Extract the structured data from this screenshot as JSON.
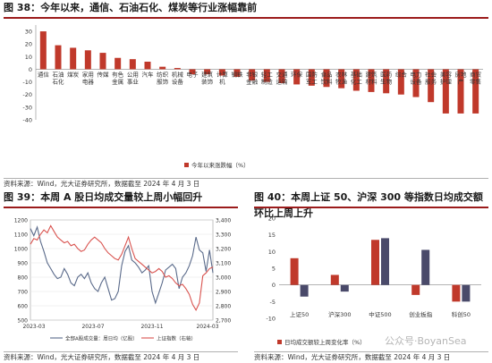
{
  "colors": {
    "accent": "#c0392b",
    "dark": "#4a4a6a",
    "rule": "#9b1b1b",
    "green": "#7ab648"
  },
  "fig38": {
    "title": "图 38：今年以来，通信、石油石化、煤炭等行业涨幅靠前",
    "source": "资料来源：Wind，光大证券研究所，数据截至 2024 年 4 月 3 日"
  },
  "fig39": {
    "title": "图 39：本周 A 股日均成交量较上周小幅回升",
    "source": "资料来源：Wind，光大证券研究所，数据截至 2024 年 4 月 3 日"
  },
  "fig40": {
    "title": "图 40：本周上证 50、沪深 300 等指数日均成交额环比上周上升",
    "source": "资料来源：Wind，光大证券研究所，数据截至 2024 年 4 月 3 日"
  },
  "watermark": "公众号·BoyanSea",
  "chart_data": [
    {
      "type": "bar",
      "ylim": [
        -40,
        35
      ],
      "yticks": [
        -40,
        -30,
        -20,
        -10,
        0,
        10,
        20,
        30
      ],
      "categories": [
        "通信",
        "石油石化",
        "煤炭",
        "家用电器",
        "传媒",
        "有色金属",
        "公用事业",
        "汽车",
        "纺织服饰",
        "机械设备",
        "电子",
        "建筑装饰",
        "计算机",
        "钢铁",
        "非银金融",
        "轻工制造",
        "交通运输",
        "环保",
        "国防军工",
        "食品饮料",
        "农林牧渔",
        "基础化工",
        "建筑材料",
        "医药生物",
        "综合",
        "电力设备",
        "社会服务",
        "美容护理",
        "房地产",
        "商贸零售"
      ],
      "values": [
        30,
        19,
        17,
        15,
        13,
        9,
        8,
        6,
        2,
        1,
        -4,
        -4,
        -5,
        -6,
        -9,
        -10,
        -11,
        -12,
        -13,
        -14,
        -15,
        -17,
        -18,
        -19,
        -20,
        -22,
        -26,
        -35,
        -35,
        -35
      ],
      "legend": [
        "今年以来涨跌幅（%）"
      ]
    },
    {
      "type": "line",
      "x_ticks": [
        "2023-03",
        "2023-07",
        "2023-11",
        "2024-03"
      ],
      "y_left_ticks": [
        500,
        600,
        700,
        800,
        900,
        1000,
        1100,
        1200
      ],
      "y_left_lim": [
        500,
        1200
      ],
      "y_right_ticks": [
        2700,
        2800,
        2900,
        3000,
        3100,
        3200,
        3300,
        3400
      ],
      "y_right_lim": [
        2700,
        3400
      ],
      "series": [
        {
          "name": "全部A股成交量：周日均（亿股）",
          "axis": "left",
          "values": [
            1140,
            1090,
            1150,
            1050,
            980,
            900,
            860,
            820,
            790,
            800,
            860,
            820,
            760,
            740,
            800,
            820,
            790,
            830,
            760,
            720,
            700,
            760,
            800,
            720,
            640,
            650,
            700,
            880,
            980,
            1020,
            920,
            900,
            870,
            830,
            850,
            880,
            700,
            620,
            690,
            760,
            850,
            870,
            890,
            860,
            720,
            800,
            830,
            880,
            950,
            1080,
            990,
            970,
            840,
            990,
            830
          ]
        },
        {
          "name": "上证指数（右轴）",
          "axis": "right",
          "values": [
            3230,
            3270,
            3260,
            3300,
            3330,
            3310,
            3360,
            3320,
            3280,
            3260,
            3240,
            3250,
            3220,
            3230,
            3200,
            3180,
            3190,
            3230,
            3260,
            3280,
            3260,
            3240,
            3200,
            3170,
            3150,
            3130,
            3120,
            3160,
            3220,
            3280,
            3200,
            3130,
            3110,
            3090,
            3070,
            3050,
            3030,
            3040,
            3060,
            3040,
            3000,
            3010,
            2990,
            2960,
            2940,
            2950,
            2920,
            2880,
            2810,
            2770,
            2820,
            3010,
            3030,
            3060,
            3070
          ]
        }
      ]
    },
    {
      "type": "bar",
      "categories": [
        "上证50",
        "沪深300",
        "中证500",
        "创业板指",
        "科创50"
      ],
      "ylim": [
        -10,
        20
      ],
      "yticks": [
        -10,
        -5,
        0,
        5,
        10,
        15,
        20
      ],
      "series": [
        {
          "name": "日均成交额较上周变化率（%）",
          "values": [
            8,
            3,
            13.5,
            -3,
            -5
          ]
        },
        {
          "name": "",
          "values": [
            -3.5,
            -2,
            14,
            10.5,
            -5
          ]
        }
      ]
    }
  ]
}
